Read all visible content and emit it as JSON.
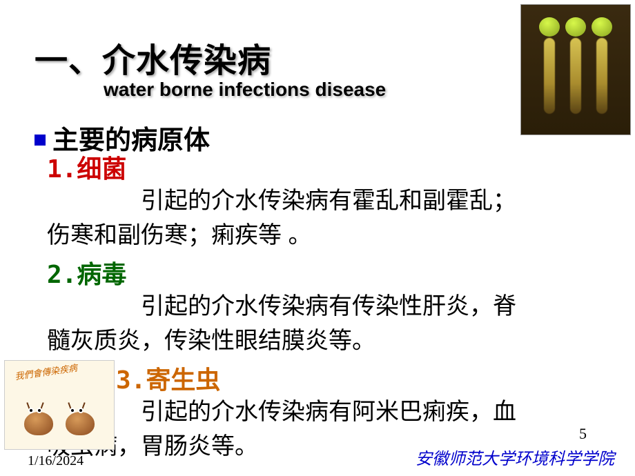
{
  "title": {
    "main": "一、介水传染病",
    "sub": "water borne   infections disease"
  },
  "heading": "主要的病原体",
  "items": [
    {
      "num": "1.",
      "name": "细菌",
      "color": "#cc0000",
      "desc_l1": "引起的介水传染病有霍乱和副霍乱；",
      "desc_l2": "伤寒和副伤寒；痢疾等 。"
    },
    {
      "num": "2.",
      "name": "病毒",
      "color": "#006600",
      "desc_l1": "引起的介水传染病有传染性肝炎，脊",
      "desc_l2": "髓灰质炎，传染性眼结膜炎等。"
    },
    {
      "num": "3.",
      "name": "寄生虫",
      "color": "#cc6600",
      "desc_l1": "引起的介水传染病有阿米巴痢疾，血",
      "desc_l2": "吸虫病，胃肠炎等。"
    }
  ],
  "images": {
    "top_right_desc": "mosquito-larvae-fluorescence",
    "bottom_left_banner": "我們會傳染疾病"
  },
  "footer": {
    "date": "1/16/2024",
    "org": "安徽师范大学环境科学学院",
    "page": "5"
  },
  "colors": {
    "bullet": "#0000cc",
    "footer_org": "#0000cc",
    "bg": "#ffffff"
  }
}
